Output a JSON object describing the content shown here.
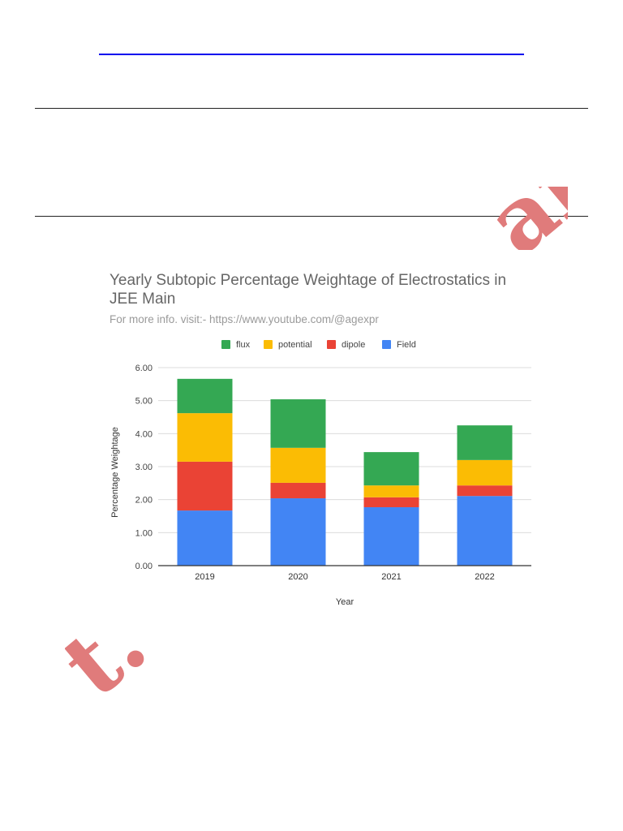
{
  "watermark_text": "t.' ar",
  "chart_data": {
    "type": "bar",
    "stacked": true,
    "title": "Yearly Subtopic Percentage Weightage of Electrostatics in JEE Main",
    "subtitle": "For more info. visit:- https://www.youtube.com/@agexpr",
    "xlabel": "Year",
    "ylabel": "Percentage Weightage",
    "categories": [
      "2019",
      "2020",
      "2021",
      "2022"
    ],
    "ylim": [
      0,
      6
    ],
    "yticks": [
      "0.00",
      "1.00",
      "2.00",
      "3.00",
      "4.00",
      "5.00",
      "6.00"
    ],
    "grid": true,
    "legend_position": "top",
    "legend_order": [
      "flux",
      "potential",
      "dipole",
      "Field"
    ],
    "series": [
      {
        "name": "Field",
        "color": "#4285f4",
        "values": [
          1.67,
          2.04,
          1.77,
          2.11
        ]
      },
      {
        "name": "dipole",
        "color": "#ea4335",
        "values": [
          1.48,
          0.47,
          0.3,
          0.32
        ]
      },
      {
        "name": "potential",
        "color": "#fbbc04",
        "values": [
          1.47,
          1.06,
          0.36,
          0.77
        ]
      },
      {
        "name": "flux",
        "color": "#34a853",
        "values": [
          1.04,
          1.47,
          1.01,
          1.05
        ]
      }
    ]
  }
}
